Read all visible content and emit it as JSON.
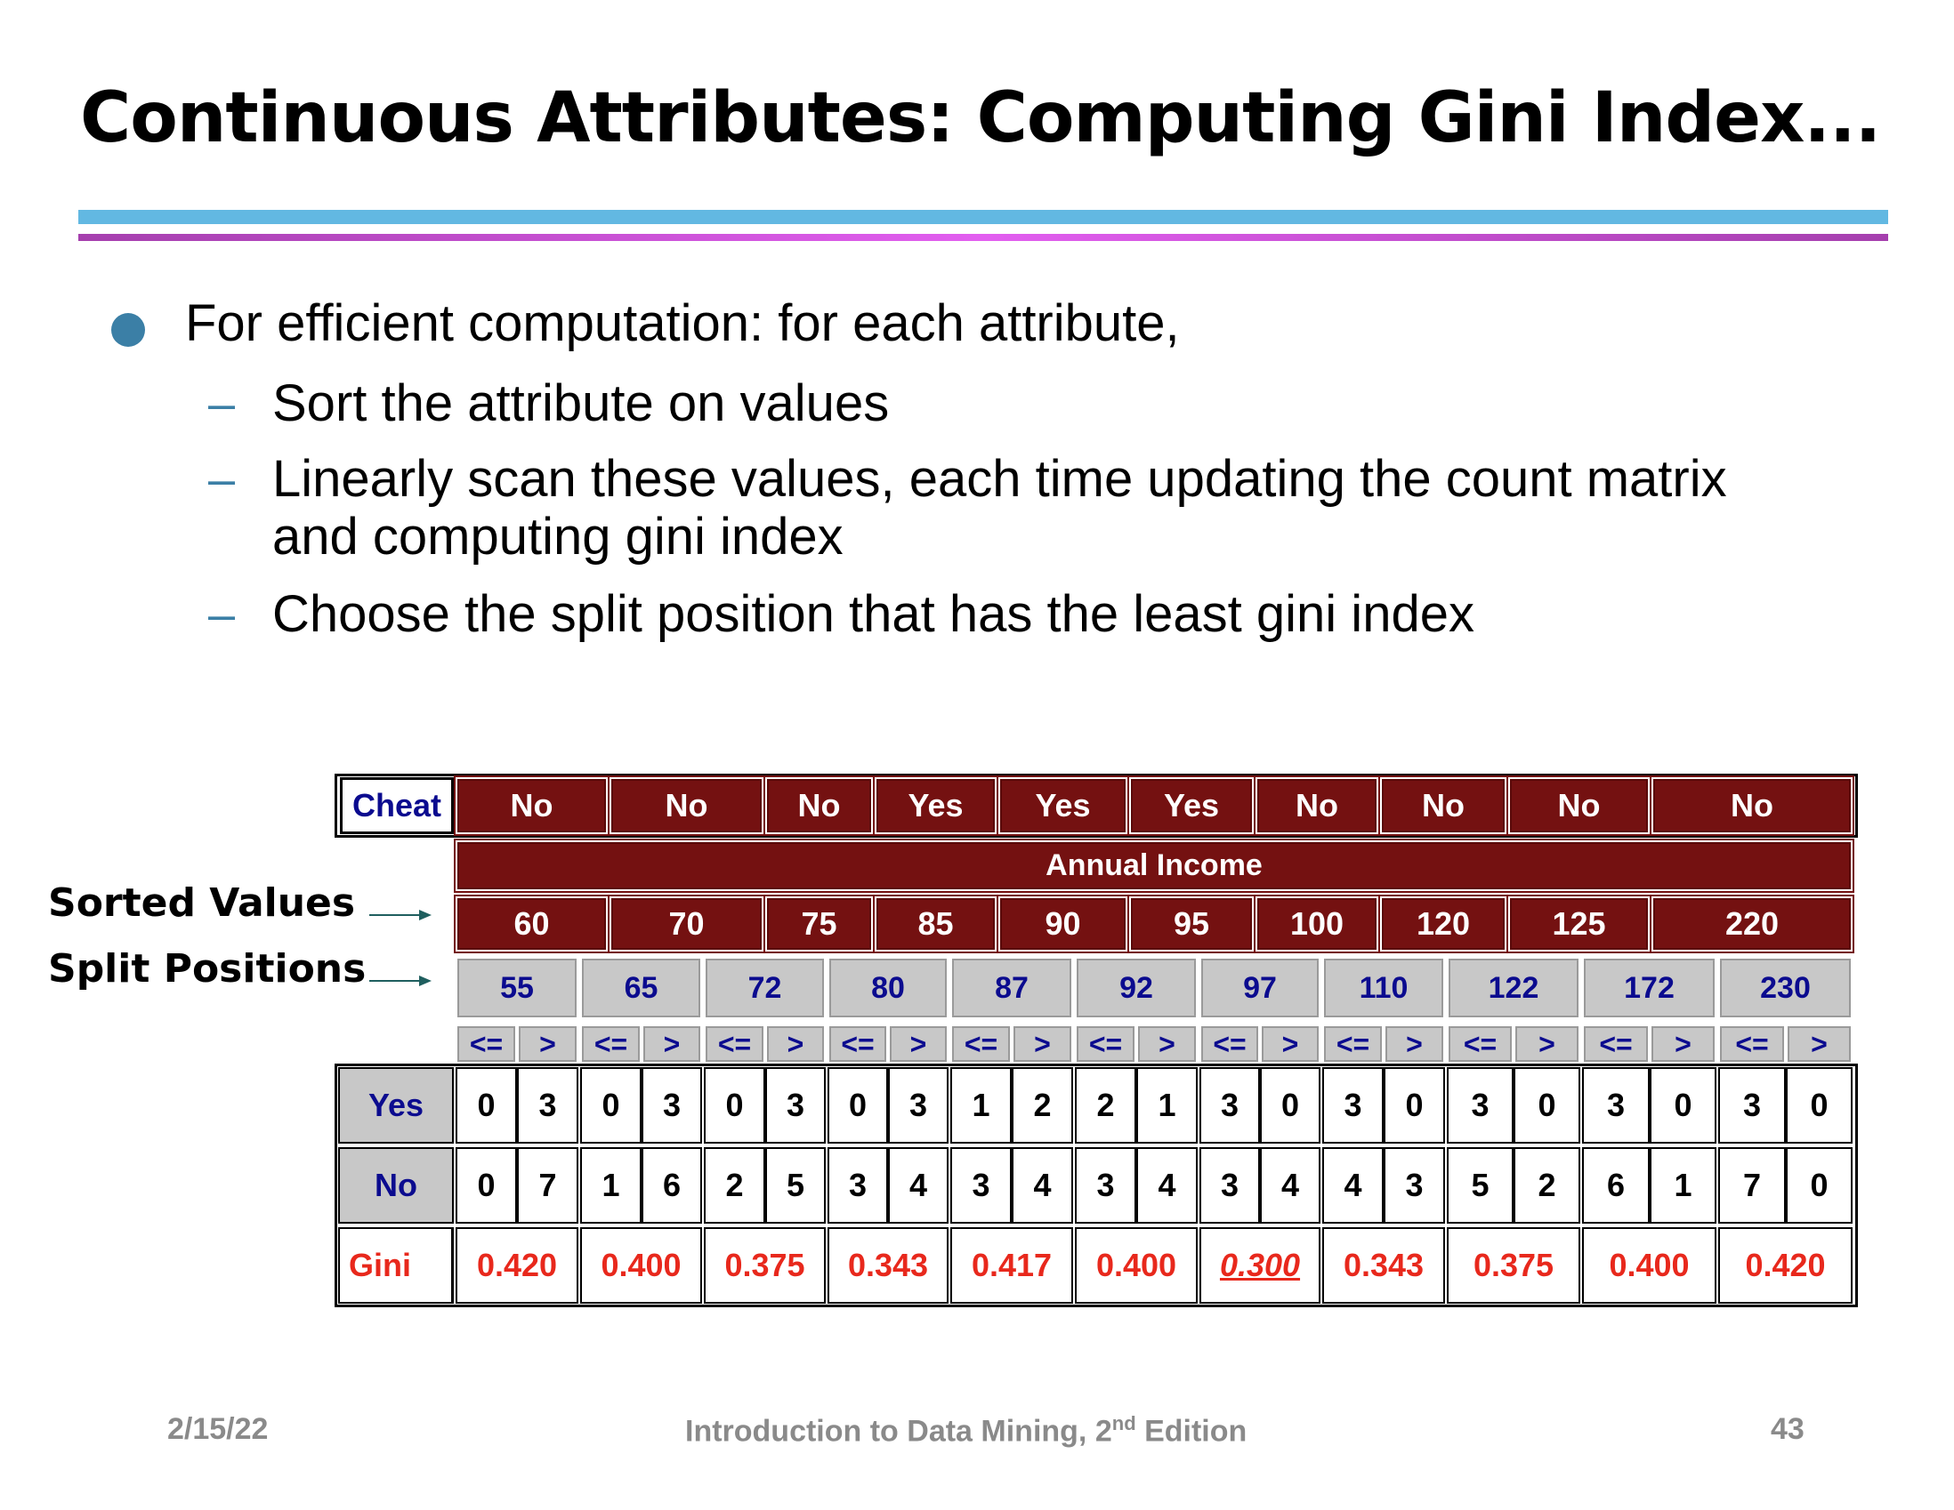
{
  "title": "Continuous Attributes: Computing Gini Index...",
  "bullets": {
    "main": "For efficient computation: for each attribute,",
    "sub": [
      "Sort the attribute on values",
      "Linearly scan these values, each time updating the count matrix",
      "and computing gini index",
      "Choose the split position that has the least gini index"
    ],
    "dash": "–"
  },
  "labels": {
    "sorted_values": "Sorted Values",
    "split_positions": "Split Positions"
  },
  "table": {
    "cheat_label": "Cheat",
    "cheat_values": [
      "No",
      "No",
      "No",
      "Yes",
      "Yes",
      "Yes",
      "No",
      "No",
      "No",
      "No"
    ],
    "attribute_header": "Annual Income",
    "sorted_values": [
      "60",
      "70",
      "75",
      "85",
      "90",
      "95",
      "100",
      "120",
      "125",
      "220"
    ],
    "split_positions": [
      "55",
      "65",
      "72",
      "80",
      "87",
      "92",
      "97",
      "110",
      "122",
      "172",
      "230"
    ],
    "ops": [
      "<=",
      ">"
    ],
    "row_labels": {
      "yes": "Yes",
      "no": "No",
      "gini": "Gini"
    },
    "yes_counts": [
      [
        "0",
        "3"
      ],
      [
        "0",
        "3"
      ],
      [
        "0",
        "3"
      ],
      [
        "0",
        "3"
      ],
      [
        "1",
        "2"
      ],
      [
        "2",
        "1"
      ],
      [
        "3",
        "0"
      ],
      [
        "3",
        "0"
      ],
      [
        "3",
        "0"
      ],
      [
        "3",
        "0"
      ],
      [
        "3",
        "0"
      ]
    ],
    "no_counts": [
      [
        "0",
        "7"
      ],
      [
        "1",
        "6"
      ],
      [
        "2",
        "5"
      ],
      [
        "3",
        "4"
      ],
      [
        "3",
        "4"
      ],
      [
        "3",
        "4"
      ],
      [
        "3",
        "4"
      ],
      [
        "4",
        "3"
      ],
      [
        "5",
        "2"
      ],
      [
        "6",
        "1"
      ],
      [
        "7",
        "0"
      ]
    ],
    "gini": [
      "0.420",
      "0.400",
      "0.375",
      "0.343",
      "0.417",
      "0.400",
      "0.300",
      "0.343",
      "0.375",
      "0.400",
      "0.420"
    ],
    "best_split_index": 6
  },
  "footer": {
    "date": "2/15/22",
    "book_prefix": "Introduction to Data Mining, 2",
    "book_sup": "nd",
    "book_suffix": " Edition",
    "page": "43"
  },
  "colors": {
    "header_dark": "#741111",
    "grey_cell": "#c8c8c8",
    "blue_text": "#0b0b8f",
    "gini_red": "#e8281c",
    "bullet_blue": "#3b7fa6",
    "rule_cyan": "#62b8e2",
    "rule_magenta": "#e25ef0"
  }
}
